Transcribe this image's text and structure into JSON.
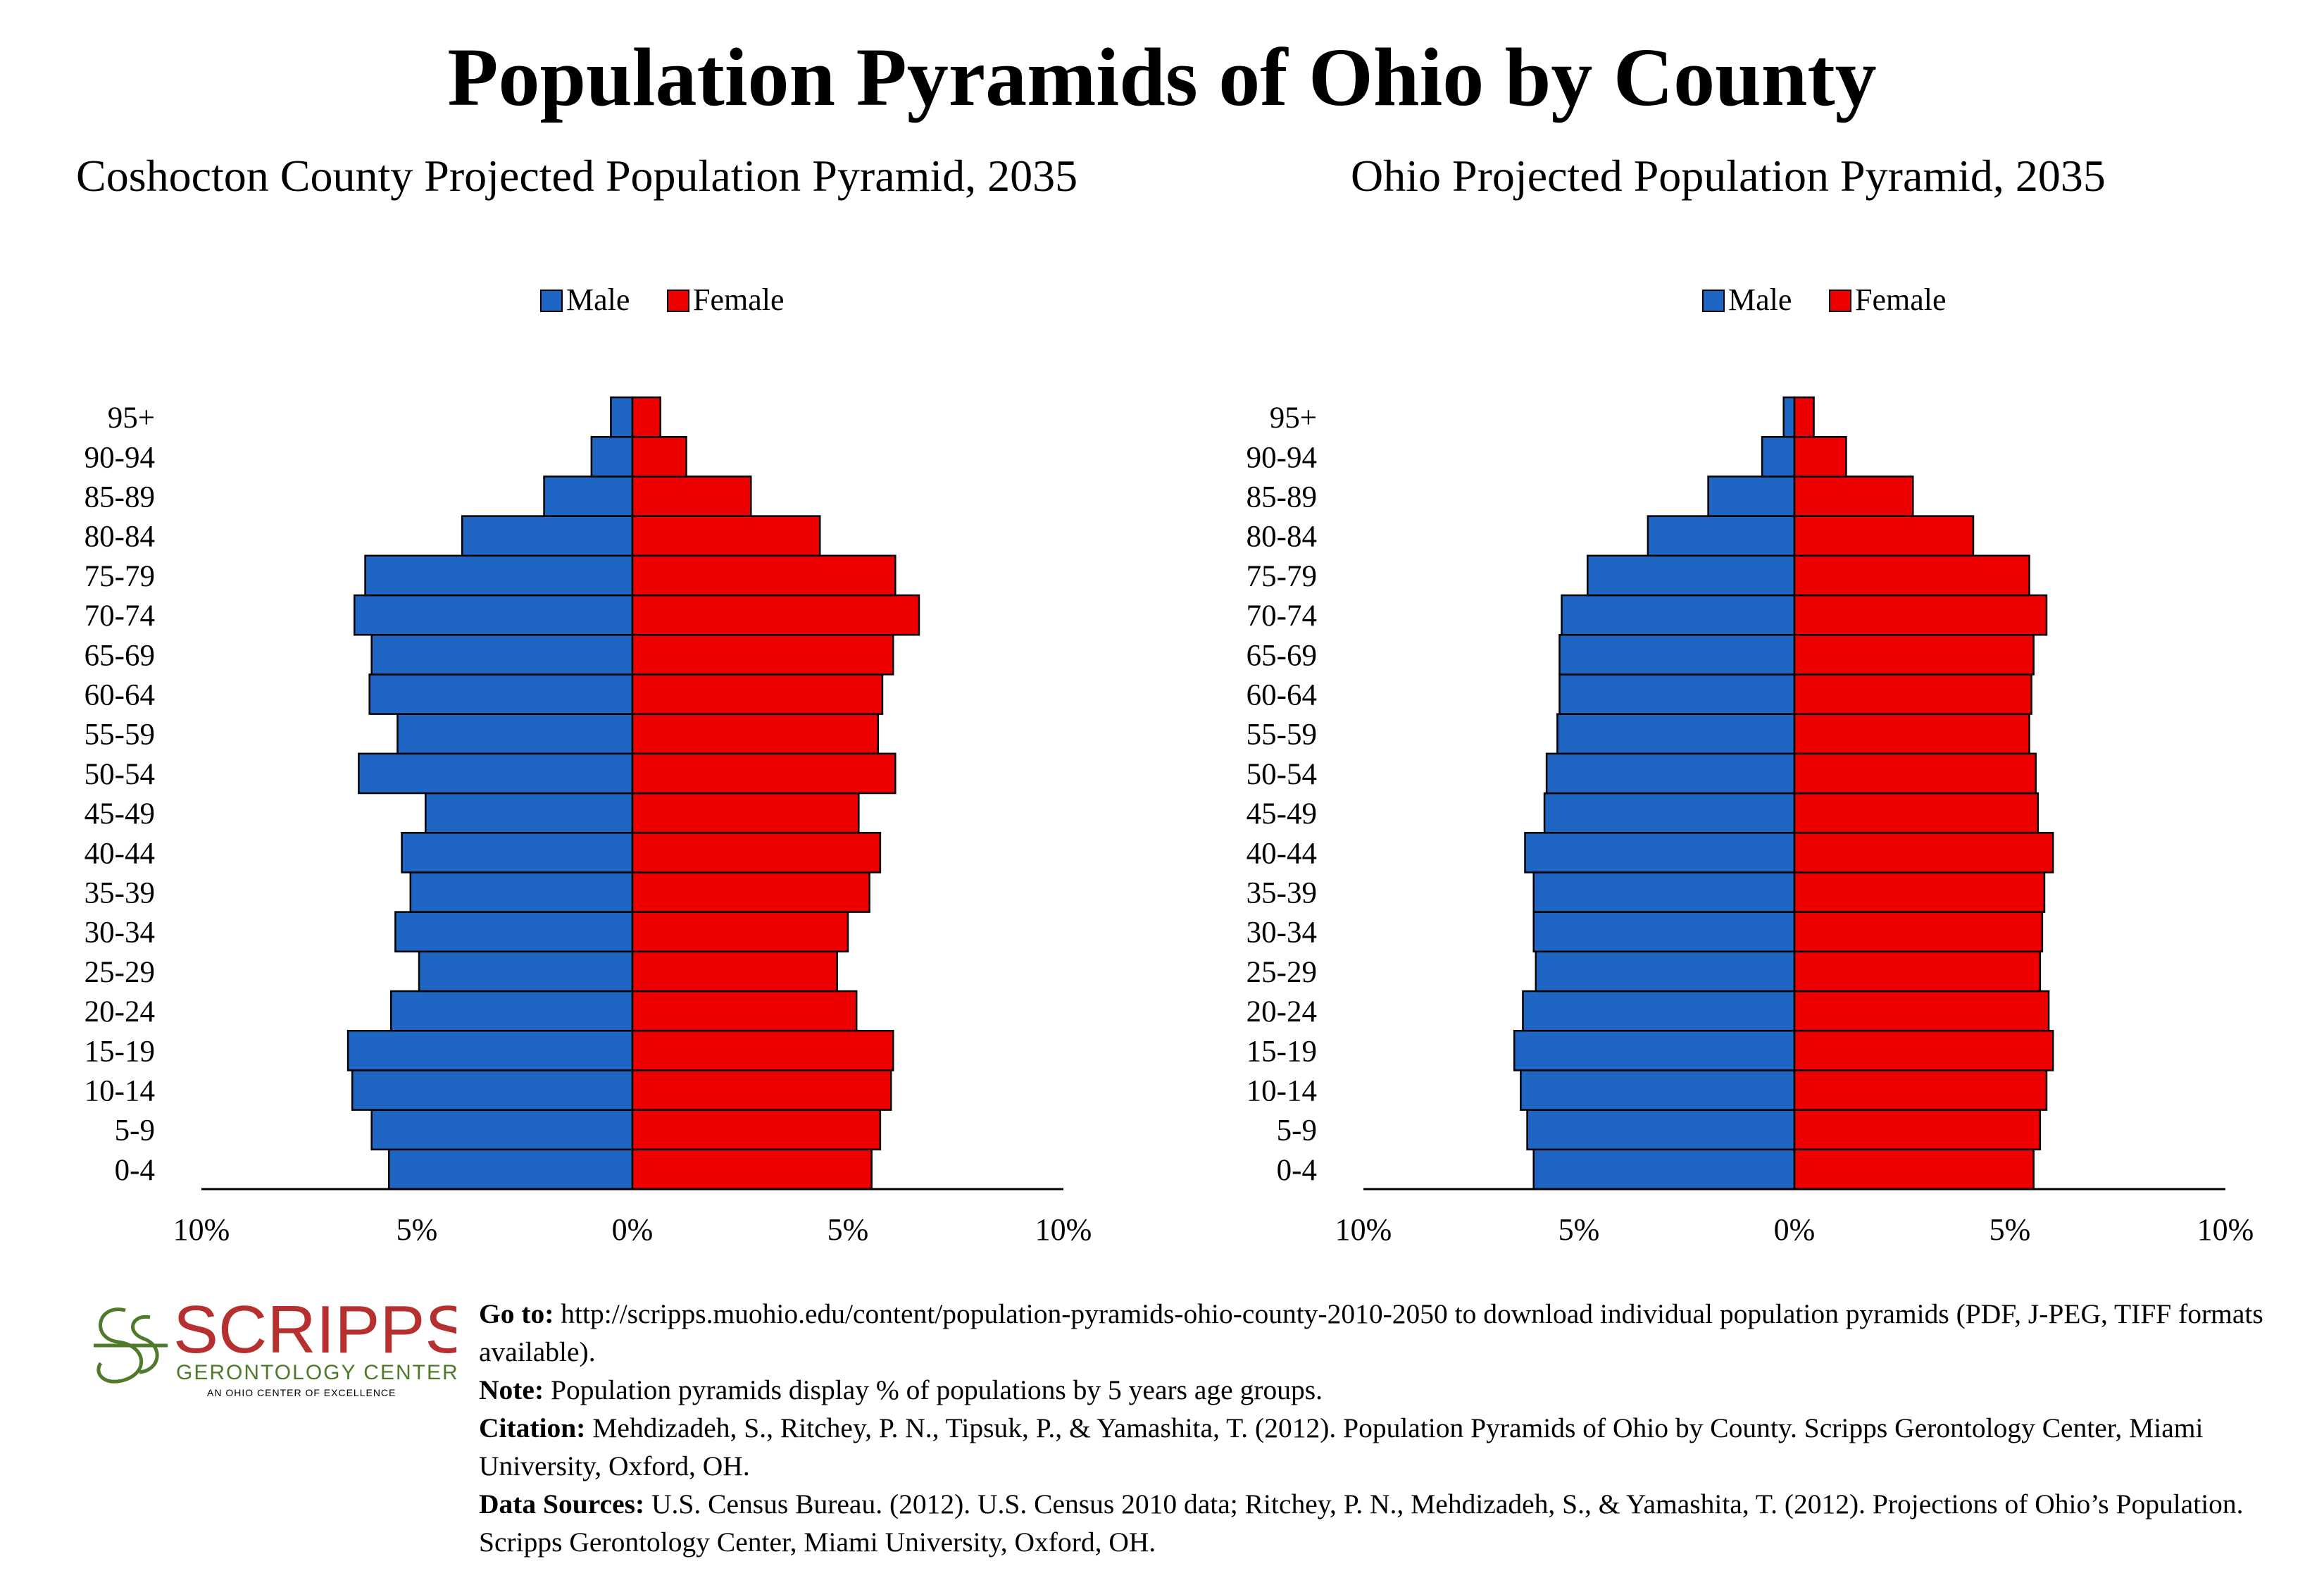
{
  "title": "Population Pyramids of Ohio by County",
  "colors": {
    "male": "#1f66c4",
    "female": "#ee0000",
    "logo_red": "#b5302e",
    "logo_green": "#4f7a2b"
  },
  "legend": {
    "male": "Male",
    "female": "Female"
  },
  "chart_data": [
    {
      "type": "bar",
      "title": "Coshocton County Projected Population Pyramid, 2035",
      "categories": [
        "0-4",
        "5-9",
        "10-14",
        "15-19",
        "20-24",
        "25-29",
        "30-34",
        "35-39",
        "40-44",
        "45-49",
        "50-54",
        "55-59",
        "60-64",
        "65-69",
        "70-74",
        "75-79",
        "80-84",
        "85-89",
        "90-94",
        "95+"
      ],
      "series": [
        {
          "name": "Male",
          "values": [
            5.65,
            6.05,
            6.5,
            6.6,
            5.6,
            4.95,
            5.5,
            5.15,
            5.35,
            4.8,
            6.35,
            5.45,
            6.1,
            6.05,
            6.45,
            6.2,
            3.95,
            2.05,
            0.95,
            0.5
          ]
        },
        {
          "name": "Female",
          "values": [
            5.55,
            5.75,
            6.0,
            6.05,
            5.2,
            4.75,
            5.0,
            5.5,
            5.75,
            5.25,
            6.1,
            5.7,
            5.8,
            6.05,
            6.65,
            6.1,
            4.35,
            2.75,
            1.25,
            0.65
          ]
        }
      ],
      "x_ticks": [
        "10%",
        "5%",
        "0%",
        "5%",
        "10%"
      ],
      "xlim": [
        -10,
        10
      ],
      "legend_position": "top-center",
      "grid": false
    },
    {
      "type": "bar",
      "title": "Ohio Projected Population Pyramid, 2035",
      "categories": [
        "0-4",
        "5-9",
        "10-14",
        "15-19",
        "20-24",
        "25-29",
        "30-34",
        "35-39",
        "40-44",
        "45-49",
        "50-54",
        "55-59",
        "60-64",
        "65-69",
        "70-74",
        "75-79",
        "80-84",
        "85-89",
        "90-94",
        "95+"
      ],
      "series": [
        {
          "name": "Male",
          "values": [
            6.05,
            6.2,
            6.35,
            6.5,
            6.3,
            6.0,
            6.05,
            6.05,
            6.25,
            5.8,
            5.75,
            5.5,
            5.45,
            5.45,
            5.4,
            4.8,
            3.4,
            2.0,
            0.75,
            0.25
          ]
        },
        {
          "name": "Female",
          "values": [
            5.55,
            5.7,
            5.85,
            6.0,
            5.9,
            5.7,
            5.75,
            5.8,
            6.0,
            5.65,
            5.6,
            5.45,
            5.5,
            5.55,
            5.85,
            5.45,
            4.15,
            2.75,
            1.2,
            0.45
          ]
        }
      ],
      "x_ticks": [
        "10%",
        "5%",
        "0%",
        "5%",
        "10%"
      ],
      "xlim": [
        -10,
        10
      ],
      "legend_position": "top-center",
      "grid": false
    }
  ],
  "logo": {
    "name": "SCRIPPS",
    "line1": "GERONTOLOGY CENTER",
    "line2": "AN OHIO CENTER OF EXCELLENCE"
  },
  "notes": {
    "goto_label": "Go to:",
    "goto_text": " http://scripps.muohio.edu/content/population-pyramids-ohio-county-2010-2050 to download individual population pyramids (PDF, J-PEG, TIFF formats available).",
    "note_label": "Note:",
    "note_text": " Population pyramids display % of populations by 5 years age groups.",
    "citation_label": "Citation:",
    "citation_text": " Mehdizadeh, S., Ritchey, P. N., Tipsuk, P., & Yamashita, T. (2012). Population Pyramids of Ohio by County. Scripps Gerontology Center, Miami University, Oxford, OH.",
    "sources_label": "Data Sources:",
    "sources_text": " U.S. Census Bureau. (2012). U.S. Census 2010 data; Ritchey, P. N., Mehdizadeh, S., & Yamashita, T. (2012). Projections of Ohio’s Population. Scripps Gerontology Center, Miami University, Oxford, OH."
  }
}
